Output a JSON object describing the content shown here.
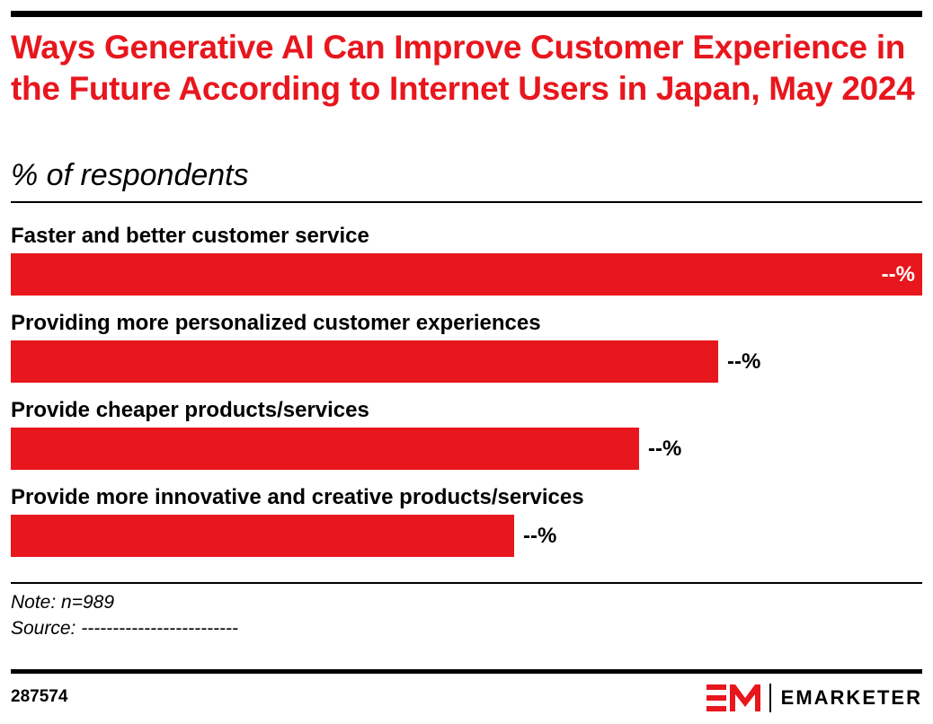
{
  "title": "Ways Generative AI Can Improve Customer Experience in the Future According to Internet Users in Japan, May 2024",
  "subtitle": "% of respondents",
  "colors": {
    "accent": "#e8161d",
    "bar": "#e8161d",
    "text": "#000000",
    "value_inside": "#ffffff"
  },
  "chart_data": {
    "type": "bar",
    "orientation": "horizontal",
    "categories": [
      "Faster and better customer service",
      "Providing more personalized customer experiences",
      "Provide cheaper products/services",
      "Provide more innovative and creative products/services"
    ],
    "values": [
      100,
      77.6,
      68.9,
      55.2
    ],
    "value_labels": [
      "--%",
      "--%",
      "--%",
      "--%"
    ],
    "xlim": [
      0,
      100
    ],
    "grid": false,
    "legend": "none"
  },
  "footer": {
    "note": "Note: n=989",
    "source": "Source: -------------------------",
    "chart_id": "287574",
    "brand": "EMARKETER",
    "logo_icon": "em-logo-icon"
  }
}
